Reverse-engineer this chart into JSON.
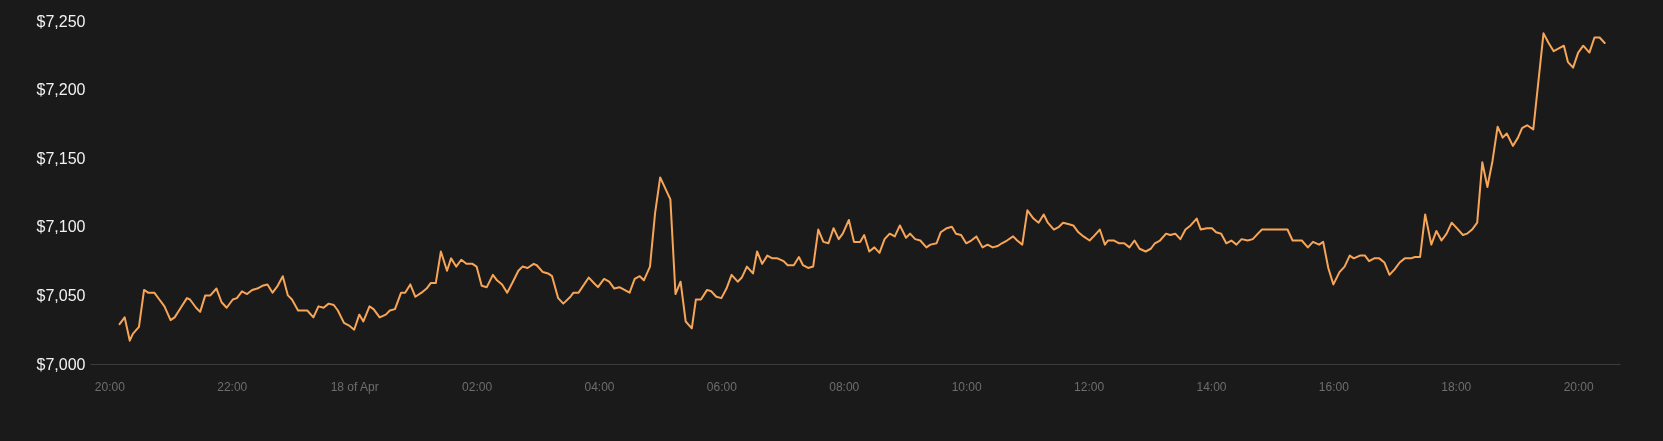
{
  "chart_data": {
    "type": "line",
    "x": [
      "--04-17T20:10",
      "--04-17T20:15",
      "--04-17T20:20",
      "--04-17T20:23",
      "--04-17T20:29",
      "--04-17T20:34",
      "--04-17T20:38",
      "--04-17T20:44",
      "--04-17T20:49",
      "--04-17T20:54",
      "--04-17T21:00",
      "--04-17T21:04",
      "--04-17T21:10",
      "--04-17T21:16",
      "--04-17T21:19",
      "--04-17T21:25",
      "--04-17T21:29",
      "--04-17T21:34",
      "--04-17T21:39",
      "--04-17T21:45",
      "--04-17T21:50",
      "--04-17T21:55",
      "--04-17T22:01",
      "--04-17T22:05",
      "--04-17T22:10",
      "--04-17T22:15",
      "--04-17T22:20",
      "--04-17T22:25",
      "--04-17T22:30",
      "--04-17T22:35",
      "--04-17T22:40",
      "--04-17T22:45",
      "--04-17T22:50",
      "--04-17T22:55",
      "--04-17T22:59",
      "--04-17T23:05",
      "--04-17T23:14",
      "--04-17T23:20",
      "--04-17T23:25",
      "--04-17T23:30",
      "--04-17T23:35",
      "--04-17T23:40",
      "--04-17T23:44",
      "--04-17T23:50",
      "--04-17T23:55",
      "--04-18T00:00",
      "--04-18T00:05",
      "--04-18T00:09",
      "--04-18T00:15",
      "--04-18T00:19",
      "--04-18T00:25",
      "--04-18T00:31",
      "--04-18T00:35",
      "--04-18T00:40",
      "--04-18T00:46",
      "--04-18T00:50",
      "--04-18T00:55",
      "--04-18T01:00",
      "--04-18T01:06",
      "--04-18T01:11",
      "--04-18T01:15",
      "--04-18T01:20",
      "--04-18T01:25",
      "--04-18T01:31",
      "--04-18T01:35",
      "--04-18T01:40",
      "--04-18T01:45",
      "--04-18T01:50",
      "--04-18T01:56",
      "--04-18T02:00",
      "--04-18T02:05",
      "--04-18T02:10",
      "--04-18T02:16",
      "--04-18T02:20",
      "--04-18T02:25",
      "--04-18T02:30",
      "--04-18T02:35",
      "--04-18T02:41",
      "--04-18T02:45",
      "--04-18T02:50",
      "--04-18T02:56",
      "--04-18T02:59",
      "--04-18T03:05",
      "--04-18T03:10",
      "--04-18T03:14",
      "--04-18T03:20",
      "--04-18T03:25",
      "--04-18T03:32",
      "--04-18T03:35",
      "--04-18T03:40",
      "--04-18T03:50",
      "--04-18T03:55",
      "--04-18T03:59",
      "--04-18T04:05",
      "--04-18T04:10",
      "--04-18T04:15",
      "--04-18T04:20",
      "--04-18T04:25",
      "--04-18T04:30",
      "--04-18T04:35",
      "--04-18T04:40",
      "--04-18T04:44",
      "--04-18T04:50",
      "--04-18T04:55",
      "--04-18T05:00",
      "--04-18T05:10",
      "--04-18T05:15",
      "--04-18T05:20",
      "--04-18T05:25",
      "--04-18T05:31",
      "--04-18T05:35",
      "--04-18T05:40",
      "--04-18T05:46",
      "--04-18T05:50",
      "--04-18T05:55",
      "--04-18T06:00",
      "--04-18T06:05",
      "--04-18T06:10",
      "--04-18T06:16",
      "--04-18T06:20",
      "--04-18T06:25",
      "--04-18T06:31",
      "--04-18T06:35",
      "--04-18T06:40",
      "--04-18T06:45",
      "--04-18T06:50",
      "--04-18T06:55",
      "--04-18T07:01",
      "--04-18T07:05",
      "--04-18T07:11",
      "--04-18T07:16",
      "--04-18T07:20",
      "--04-18T07:25",
      "--04-18T07:30",
      "--04-18T07:35",
      "--04-18T07:40",
      "--04-18T07:45",
      "--04-18T07:50",
      "--04-18T07:55",
      "--04-18T07:59",
      "--04-18T08:05",
      "--04-18T08:10",
      "--04-18T08:16",
      "--04-18T08:20",
      "--04-18T08:25",
      "--04-18T08:30",
      "--04-18T08:35",
      "--04-18T08:40",
      "--04-18T08:45",
      "--04-18T08:50",
      "--04-18T08:55",
      "--04-18T09:01",
      "--04-18T09:05",
      "--04-18T09:10",
      "--04-18T09:15",
      "--04-18T09:21",
      "--04-18T09:25",
      "--04-18T09:31",
      "--04-18T09:35",
      "--04-18T09:41",
      "--04-18T09:46",
      "--04-18T09:50",
      "--04-18T09:55",
      "--04-18T10:00",
      "--04-18T10:05",
      "--04-18T10:10",
      "--04-18T10:16",
      "--04-18T10:21",
      "--04-18T10:26",
      "--04-18T10:31",
      "--04-18T10:35",
      "--04-18T10:40",
      "--04-18T10:46",
      "--04-18T10:50",
      "--04-18T10:55",
      "--04-18T11:00",
      "--04-18T11:06",
      "--04-18T11:11",
      "--04-18T11:16",
      "--04-18T11:20",
      "--04-18T11:26",
      "--04-18T11:31",
      "--04-18T11:35",
      "--04-18T11:40",
      "--04-18T11:45",
      "--04-18T11:50",
      "--04-18T11:55",
      "--04-18T12:01",
      "--04-18T12:05",
      "--04-18T12:11",
      "--04-18T12:16",
      "--04-18T12:19",
      "--04-18T12:25",
      "--04-18T12:30",
      "--04-18T12:35",
      "--04-18T12:40",
      "--04-18T12:45",
      "--04-18T12:50",
      "--04-18T12:56",
      "--04-18T13:01",
      "--04-18T13:05",
      "--04-18T13:10",
      "--04-18T13:16",
      "--04-18T13:20",
      "--04-18T13:25",
      "--04-18T13:30",
      "--04-18T13:35",
      "--04-18T13:40",
      "--04-18T13:46",
      "--04-18T13:50",
      "--04-18T13:56",
      "--04-18T14:01",
      "--04-18T14:05",
      "--04-18T14:10",
      "--04-18T14:15",
      "--04-18T14:20",
      "--04-18T14:25",
      "--04-18T14:30",
      "--04-18T14:36",
      "--04-18T14:41",
      "--04-18T14:46",
      "--04-18T14:50",
      "--04-18T14:55",
      "--04-18T15:05",
      "--04-18T15:10",
      "--04-18T15:15",
      "--04-18T15:20",
      "--04-18T15:25",
      "--04-18T15:29",
      "--04-18T15:35",
      "--04-18T15:40",
      "--04-18T15:46",
      "--04-18T15:50",
      "--04-18T15:55",
      "--04-18T16:00",
      "--04-18T16:06",
      "--04-18T16:11",
      "--04-18T16:16",
      "--04-18T16:20",
      "--04-18T16:26",
      "--04-18T16:31",
      "--04-18T16:35",
      "--04-18T16:40",
      "--04-18T16:45",
      "--04-18T16:50",
      "--04-18T16:55",
      "--04-18T17:00",
      "--04-18T17:05",
      "--04-18T17:10",
      "--04-18T17:16",
      "--04-18T17:20",
      "--04-18T17:25",
      "--04-18T17:30",
      "--04-18T17:36",
      "--04-18T17:41",
      "--04-18T17:46",
      "--04-18T17:51",
      "--04-18T17:56",
      "--04-18T18:01",
      "--04-18T18:07",
      "--04-18T18:11",
      "--04-18T18:16",
      "--04-18T18:21",
      "--04-18T18:26",
      "--04-18T18:31",
      "--04-18T18:36",
      "--04-18T18:41",
      "--04-18T18:46",
      "--04-18T18:50",
      "--04-18T18:56",
      "--04-18T19:01",
      "--04-18T19:05",
      "--04-18T19:10",
      "--04-18T19:16",
      "--04-18T19:26",
      "--04-18T19:31",
      "--04-18T19:36",
      "--04-18T19:41",
      "--04-18T19:46",
      "--04-18T19:50",
      "--04-18T19:55",
      "--04-18T20:00",
      "--04-18T20:05",
      "--04-18T20:11",
      "--04-18T20:16",
      "--04-18T20:21",
      "--04-18T20:26"
    ],
    "series": [
      {
        "color": "#f7a556",
        "values": [
          7029,
          7034,
          7017,
          7022,
          7027,
          7054,
          7052,
          7052,
          7047,
          7042,
          7032,
          7034,
          7041,
          7048,
          7047,
          7041,
          7038,
          7050,
          7050,
          7055,
          7045,
          7041,
          7047,
          7048,
          7053,
          7051,
          7054,
          7055,
          7057,
          7058,
          7052,
          7057,
          7064,
          7050,
          7047,
          7039,
          7039,
          7034,
          7042,
          7041,
          7044,
          7043,
          7039,
          7030,
          7028,
          7025,
          7036,
          7031,
          7042,
          7040,
          7034,
          7036,
          7039,
          7040,
          7052,
          7052,
          7058,
          7049,
          7052,
          7055,
          7059,
          7059,
          7082,
          7068,
          7077,
          7071,
          7076,
          7073,
          7073,
          7071,
          7057,
          7056,
          7065,
          7061,
          7058,
          7052,
          7059,
          7068,
          7071,
          7070,
          7073,
          7072,
          7067,
          7066,
          7064,
          7048,
          7044,
          7049,
          7052,
          7052,
          7063,
          7059,
          7056,
          7062,
          7060,
          7055,
          7056,
          7054,
          7052,
          7062,
          7064,
          7061,
          7071,
          7110,
          7136,
          7120,
          7051,
          7060,
          7031,
          7026,
          7047,
          7047,
          7054,
          7053,
          7049,
          7048,
          7055,
          7065,
          7060,
          7063,
          7071,
          7066,
          7082,
          7073,
          7079,
          7077,
          7077,
          7075,
          7072,
          7072,
          7078,
          7072,
          7070,
          7071,
          7098,
          7089,
          7088,
          7099,
          7091,
          7095,
          7105,
          7089,
          7089,
          7094,
          7082,
          7085,
          7081,
          7091,
          7095,
          7093,
          7101,
          7092,
          7095,
          7091,
          7090,
          7085,
          7087,
          7088,
          7096,
          7099,
          7100,
          7095,
          7094,
          7088,
          7090,
          7093,
          7085,
          7087,
          7085,
          7086,
          7088,
          7090,
          7093,
          7090,
          7087,
          7112,
          7106,
          7103,
          7109,
          7103,
          7098,
          7100,
          7103,
          7102,
          7101,
          7096,
          7093,
          7090,
          7093,
          7098,
          7087,
          7090,
          7090,
          7088,
          7088,
          7085,
          7090,
          7084,
          7082,
          7084,
          7088,
          7090,
          7095,
          7094,
          7095,
          7091,
          7098,
          7101,
          7106,
          7098,
          7099,
          7099,
          7096,
          7095,
          7088,
          7090,
          7087,
          7091,
          7090,
          7091,
          7095,
          7098,
          7098,
          7098,
          7098,
          7098,
          7090,
          7090,
          7090,
          7085,
          7089,
          7087,
          7089,
          7070,
          7058,
          7067,
          7071,
          7079,
          7077,
          7079,
          7079,
          7075,
          7077,
          7077,
          7074,
          7065,
          7069,
          7074,
          7077,
          7077,
          7078,
          7078,
          7109,
          7087,
          7097,
          7090,
          7095,
          7103,
          7099,
          7094,
          7095,
          7098,
          7103,
          7147,
          7129,
          7148,
          7173,
          7165,
          7168,
          7159,
          7165,
          7172,
          7174,
          7171,
          7241,
          7234,
          7228,
          7230,
          7232,
          7220,
          7216,
          7227,
          7232,
          7227,
          7238,
          7238,
          7234
        ]
      }
    ],
    "xticks": [
      {
        "value": "--04-17T20:00",
        "label": "20:00"
      },
      {
        "value": "--04-17T22:00",
        "label": "22:00"
      },
      {
        "value": "--04-18T00:00",
        "label": "18 of Apr"
      },
      {
        "value": "--04-18T02:00",
        "label": "02:00"
      },
      {
        "value": "--04-18T04:00",
        "label": "04:00"
      },
      {
        "value": "--04-18T06:00",
        "label": "06:00"
      },
      {
        "value": "--04-18T08:00",
        "label": "08:00"
      },
      {
        "value": "--04-18T10:00",
        "label": "10:00"
      },
      {
        "value": "--04-18T12:00",
        "label": "12:00"
      },
      {
        "value": "--04-18T14:00",
        "label": "14:00"
      },
      {
        "value": "--04-18T16:00",
        "label": "16:00"
      },
      {
        "value": "--04-18T18:00",
        "label": "18:00"
      },
      {
        "value": "--04-18T20:00",
        "label": "20:00"
      }
    ],
    "xlim": [
      "--04-17T19:41",
      "--04-18T20:41"
    ],
    "ylim": [
      7000,
      7250
    ],
    "yticks": [
      {
        "value": 7000,
        "label": "$7,000"
      },
      {
        "value": 7050,
        "label": "$7,050"
      },
      {
        "value": 7100,
        "label": "$7,100"
      },
      {
        "value": 7150,
        "label": "$7,150"
      },
      {
        "value": 7200,
        "label": "$7,200"
      },
      {
        "value": 7250,
        "label": "$7,250"
      }
    ],
    "grid": false,
    "marker": "none",
    "line_style": "solid"
  }
}
